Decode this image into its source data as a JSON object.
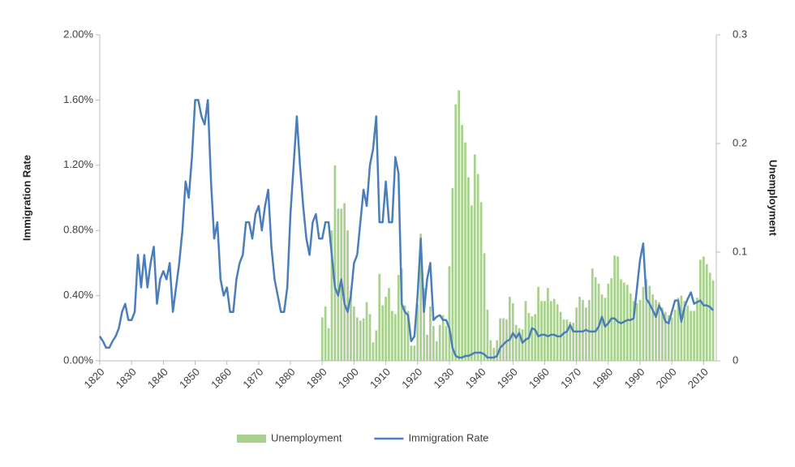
{
  "chart_data": {
    "type": "combo",
    "y_label": "Immigration Rate",
    "y2_label": "Unemployment",
    "x": [
      1820,
      1821,
      1822,
      1823,
      1824,
      1825,
      1826,
      1827,
      1828,
      1829,
      1830,
      1831,
      1832,
      1833,
      1834,
      1835,
      1836,
      1837,
      1838,
      1839,
      1840,
      1841,
      1842,
      1843,
      1844,
      1845,
      1846,
      1847,
      1848,
      1849,
      1850,
      1851,
      1852,
      1853,
      1854,
      1855,
      1856,
      1857,
      1858,
      1859,
      1860,
      1861,
      1862,
      1863,
      1864,
      1865,
      1866,
      1867,
      1868,
      1869,
      1870,
      1871,
      1872,
      1873,
      1874,
      1875,
      1876,
      1877,
      1878,
      1879,
      1880,
      1881,
      1882,
      1883,
      1884,
      1885,
      1886,
      1887,
      1888,
      1889,
      1890,
      1891,
      1892,
      1893,
      1894,
      1895,
      1896,
      1897,
      1898,
      1899,
      1900,
      1901,
      1902,
      1903,
      1904,
      1905,
      1906,
      1907,
      1908,
      1909,
      1910,
      1911,
      1912,
      1913,
      1914,
      1915,
      1916,
      1917,
      1918,
      1919,
      1920,
      1921,
      1922,
      1923,
      1924,
      1925,
      1926,
      1927,
      1928,
      1929,
      1930,
      1931,
      1932,
      1933,
      1934,
      1935,
      1936,
      1937,
      1938,
      1939,
      1940,
      1941,
      1942,
      1943,
      1944,
      1945,
      1946,
      1947,
      1948,
      1949,
      1950,
      1951,
      1952,
      1953,
      1954,
      1955,
      1956,
      1957,
      1958,
      1959,
      1960,
      1961,
      1962,
      1963,
      1964,
      1965,
      1966,
      1967,
      1968,
      1969,
      1970,
      1971,
      1972,
      1973,
      1974,
      1975,
      1976,
      1977,
      1978,
      1979,
      1980,
      1981,
      1982,
      1983,
      1984,
      1985,
      1986,
      1987,
      1988,
      1989,
      1990,
      1991,
      1992,
      1993,
      1994,
      1995,
      1996,
      1997,
      1998,
      1999,
      2000,
      2001,
      2002,
      2003,
      2004,
      2005,
      2006,
      2007,
      2008,
      2009,
      2010,
      2011,
      2012,
      2013
    ],
    "series": [
      {
        "name": "Unemployment",
        "type": "bar",
        "axis": "y2",
        "color": "#a9d18e",
        "values": [
          null,
          null,
          null,
          null,
          null,
          null,
          null,
          null,
          null,
          null,
          null,
          null,
          null,
          null,
          null,
          null,
          null,
          null,
          null,
          null,
          null,
          null,
          null,
          null,
          null,
          null,
          null,
          null,
          null,
          null,
          null,
          null,
          null,
          null,
          null,
          null,
          null,
          null,
          null,
          null,
          null,
          null,
          null,
          null,
          null,
          null,
          null,
          null,
          null,
          null,
          null,
          null,
          null,
          null,
          null,
          null,
          null,
          null,
          null,
          null,
          null,
          null,
          null,
          null,
          null,
          null,
          null,
          null,
          null,
          null,
          0.04,
          0.05,
          0.03,
          0.12,
          0.18,
          0.14,
          0.14,
          0.145,
          0.12,
          0.065,
          0.05,
          0.04,
          0.037,
          0.039,
          0.054,
          0.043,
          0.017,
          0.028,
          0.08,
          0.051,
          0.059,
          0.067,
          0.046,
          0.043,
          0.079,
          0.085,
          0.051,
          0.046,
          0.014,
          0.014,
          0.052,
          0.117,
          0.067,
          0.024,
          0.05,
          0.032,
          0.018,
          0.033,
          0.042,
          0.032,
          0.087,
          0.159,
          0.236,
          0.249,
          0.217,
          0.201,
          0.169,
          0.143,
          0.19,
          0.172,
          0.146,
          0.099,
          0.047,
          0.019,
          0.012,
          0.019,
          0.039,
          0.039,
          0.038,
          0.059,
          0.053,
          0.033,
          0.03,
          0.029,
          0.055,
          0.044,
          0.041,
          0.043,
          0.068,
          0.055,
          0.055,
          0.067,
          0.055,
          0.057,
          0.052,
          0.045,
          0.038,
          0.038,
          0.036,
          0.035,
          0.049,
          0.059,
          0.056,
          0.049,
          0.056,
          0.085,
          0.077,
          0.071,
          0.061,
          0.058,
          0.071,
          0.076,
          0.097,
          0.096,
          0.075,
          0.072,
          0.07,
          0.062,
          0.055,
          0.053,
          0.056,
          0.068,
          0.075,
          0.069,
          0.061,
          0.056,
          0.054,
          0.049,
          0.045,
          0.042,
          0.04,
          0.047,
          0.058,
          0.06,
          0.055,
          0.051,
          0.046,
          0.046,
          0.058,
          0.093,
          0.096,
          0.089,
          0.081,
          0.074
        ]
      },
      {
        "name": "Immigration Rate",
        "type": "line",
        "axis": "y",
        "color": "#4a7ebb",
        "values": [
          0.15,
          0.12,
          0.08,
          0.08,
          0.12,
          0.15,
          0.2,
          0.3,
          0.35,
          0.25,
          0.25,
          0.3,
          0.65,
          0.45,
          0.65,
          0.45,
          0.6,
          0.7,
          0.35,
          0.5,
          0.55,
          0.5,
          0.6,
          0.3,
          0.45,
          0.6,
          0.8,
          1.1,
          1.0,
          1.25,
          1.6,
          1.6,
          1.5,
          1.45,
          1.6,
          1.1,
          0.75,
          0.85,
          0.5,
          0.4,
          0.45,
          0.3,
          0.3,
          0.5,
          0.6,
          0.65,
          0.85,
          0.85,
          0.75,
          0.9,
          0.95,
          0.8,
          0.95,
          1.05,
          0.7,
          0.5,
          0.4,
          0.3,
          0.3,
          0.45,
          0.9,
          1.2,
          1.5,
          1.2,
          0.95,
          0.75,
          0.65,
          0.85,
          0.9,
          0.75,
          0.75,
          0.85,
          0.85,
          0.65,
          0.45,
          0.4,
          0.5,
          0.35,
          0.3,
          0.4,
          0.6,
          0.65,
          0.85,
          1.05,
          0.95,
          1.2,
          1.3,
          1.5,
          0.85,
          0.85,
          1.1,
          0.85,
          0.85,
          1.25,
          1.15,
          0.35,
          0.3,
          0.28,
          0.12,
          0.15,
          0.4,
          0.75,
          0.3,
          0.5,
          0.6,
          0.25,
          0.27,
          0.28,
          0.25,
          0.25,
          0.2,
          0.08,
          0.03,
          0.02,
          0.02,
          0.03,
          0.03,
          0.04,
          0.05,
          0.05,
          0.05,
          0.04,
          0.02,
          0.02,
          0.02,
          0.03,
          0.08,
          0.1,
          0.12,
          0.13,
          0.17,
          0.14,
          0.17,
          0.11,
          0.13,
          0.14,
          0.2,
          0.19,
          0.15,
          0.16,
          0.16,
          0.15,
          0.16,
          0.16,
          0.15,
          0.15,
          0.17,
          0.18,
          0.22,
          0.18,
          0.18,
          0.18,
          0.18,
          0.19,
          0.18,
          0.18,
          0.18,
          0.21,
          0.27,
          0.21,
          0.23,
          0.26,
          0.26,
          0.24,
          0.23,
          0.24,
          0.25,
          0.25,
          0.26,
          0.44,
          0.62,
          0.72,
          0.38,
          0.35,
          0.31,
          0.27,
          0.34,
          0.3,
          0.24,
          0.23,
          0.3,
          0.37,
          0.37,
          0.24,
          0.33,
          0.38,
          0.42,
          0.35,
          0.36,
          0.37,
          0.34,
          0.34,
          0.33,
          0.31
        ]
      }
    ],
    "xlim": [
      1820,
      2014
    ],
    "xticks": [
      1820,
      1830,
      1840,
      1850,
      1860,
      1870,
      1880,
      1890,
      1900,
      1910,
      1920,
      1930,
      1940,
      1950,
      1960,
      1970,
      1980,
      1990,
      2000,
      2010
    ],
    "ylim": [
      0,
      2
    ],
    "yticks": [
      {
        "value": 0,
        "label": "0.00%"
      },
      {
        "value": 0.4,
        "label": "0.40%"
      },
      {
        "value": 0.8,
        "label": "0.80%"
      },
      {
        "value": 1.2,
        "label": "1.20%"
      },
      {
        "value": 1.6,
        "label": "1.60%"
      },
      {
        "value": 2,
        "label": "2.00%"
      }
    ],
    "y2lim": [
      0,
      0.3
    ],
    "y2ticks": [
      0,
      0.1,
      0.2,
      0.3
    ],
    "legend": "bottom"
  }
}
